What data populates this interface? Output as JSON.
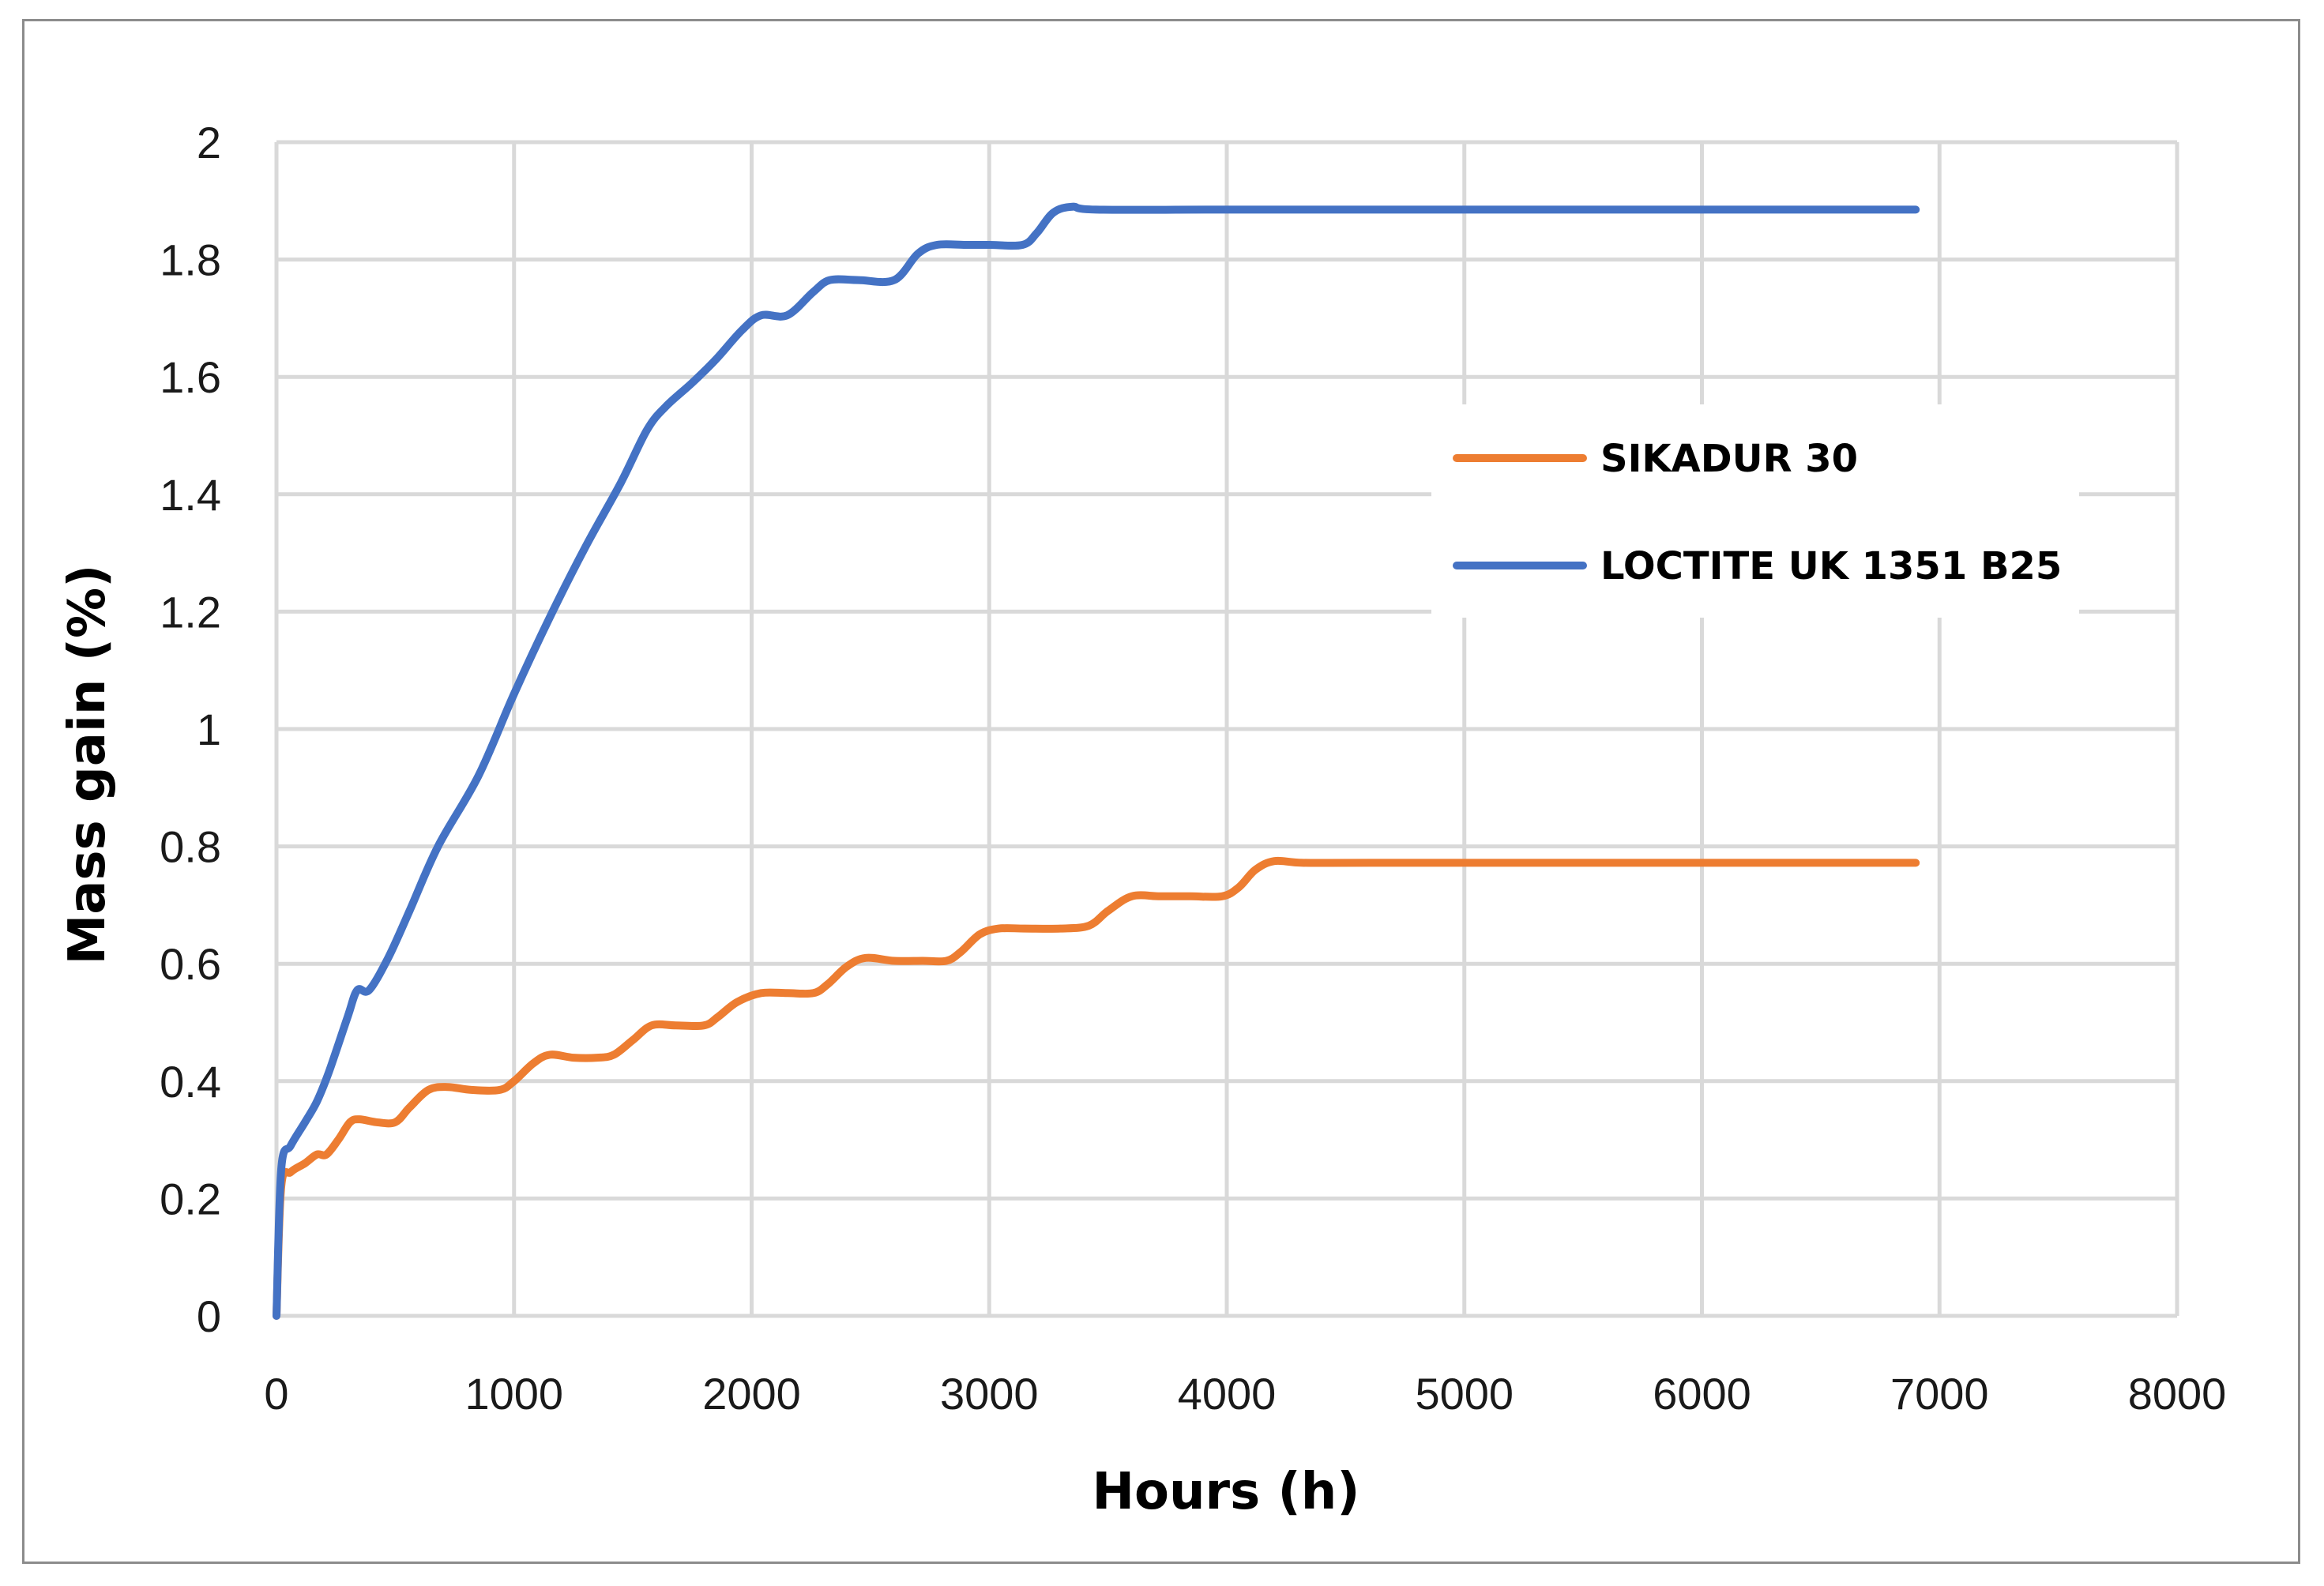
{
  "chart_data": {
    "type": "line",
    "title": "",
    "xlabel": "Hours (h)",
    "ylabel": "Mass gain (%)",
    "xlim": [
      0,
      8000
    ],
    "ylim": [
      0,
      2
    ],
    "x_ticks": [
      0,
      1000,
      2000,
      3000,
      4000,
      5000,
      6000,
      7000,
      8000
    ],
    "y_ticks": [
      0,
      0.2,
      0.4,
      0.6,
      0.8,
      1,
      1.2,
      1.4,
      1.6,
      1.8,
      2
    ],
    "x_tick_labels": [
      "0",
      "1000",
      "2000",
      "3000",
      "4000",
      "5000",
      "6000",
      "7000",
      "8000"
    ],
    "y_tick_labels": [
      "0",
      "0.2",
      "0.4",
      "0.6",
      "0.8",
      "1",
      "1.2",
      "1.4",
      "1.6",
      "1.8",
      "2"
    ],
    "grid": true,
    "legend_position": "right",
    "series": [
      {
        "name": "SIKADUR 30",
        "color": "#ed7d31",
        "points": [
          [
            0,
            0
          ],
          [
            20,
            0.22
          ],
          [
            60,
            0.245
          ],
          [
            120,
            0.26
          ],
          [
            170,
            0.275
          ],
          [
            210,
            0.275
          ],
          [
            260,
            0.3
          ],
          [
            310,
            0.33
          ],
          [
            350,
            0.335
          ],
          [
            420,
            0.33
          ],
          [
            500,
            0.33
          ],
          [
            560,
            0.355
          ],
          [
            640,
            0.385
          ],
          [
            720,
            0.39
          ],
          [
            820,
            0.385
          ],
          [
            940,
            0.385
          ],
          [
            1000,
            0.4
          ],
          [
            1080,
            0.43
          ],
          [
            1150,
            0.445
          ],
          [
            1250,
            0.44
          ],
          [
            1350,
            0.44
          ],
          [
            1420,
            0.445
          ],
          [
            1500,
            0.47
          ],
          [
            1580,
            0.495
          ],
          [
            1680,
            0.495
          ],
          [
            1800,
            0.495
          ],
          [
            1860,
            0.51
          ],
          [
            1940,
            0.535
          ],
          [
            2040,
            0.55
          ],
          [
            2150,
            0.55
          ],
          [
            2260,
            0.55
          ],
          [
            2320,
            0.565
          ],
          [
            2400,
            0.595
          ],
          [
            2480,
            0.61
          ],
          [
            2600,
            0.605
          ],
          [
            2720,
            0.605
          ],
          [
            2820,
            0.605
          ],
          [
            2880,
            0.62
          ],
          [
            2960,
            0.65
          ],
          [
            3040,
            0.66
          ],
          [
            3150,
            0.66
          ],
          [
            3300,
            0.66
          ],
          [
            3420,
            0.665
          ],
          [
            3500,
            0.69
          ],
          [
            3600,
            0.715
          ],
          [
            3720,
            0.715
          ],
          [
            3850,
            0.715
          ],
          [
            3980,
            0.715
          ],
          [
            4050,
            0.73
          ],
          [
            4120,
            0.76
          ],
          [
            4200,
            0.775
          ],
          [
            4320,
            0.772
          ],
          [
            4600,
            0.772
          ],
          [
            5500,
            0.772
          ],
          [
            6900,
            0.772
          ]
        ]
      },
      {
        "name": "LOCTITE UK 1351 B25",
        "color": "#4472c4",
        "points": [
          [
            0,
            0
          ],
          [
            20,
            0.25
          ],
          [
            60,
            0.29
          ],
          [
            120,
            0.33
          ],
          [
            170,
            0.365
          ],
          [
            220,
            0.415
          ],
          [
            300,
            0.51
          ],
          [
            340,
            0.555
          ],
          [
            390,
            0.555
          ],
          [
            470,
            0.61
          ],
          [
            560,
            0.69
          ],
          [
            680,
            0.8
          ],
          [
            850,
            0.92
          ],
          [
            1000,
            1.06
          ],
          [
            1150,
            1.19
          ],
          [
            1300,
            1.31
          ],
          [
            1450,
            1.42
          ],
          [
            1560,
            1.51
          ],
          [
            1640,
            1.55
          ],
          [
            1750,
            1.59
          ],
          [
            1850,
            1.63
          ],
          [
            1960,
            1.68
          ],
          [
            2040,
            1.705
          ],
          [
            2150,
            1.705
          ],
          [
            2260,
            1.745
          ],
          [
            2330,
            1.765
          ],
          [
            2450,
            1.765
          ],
          [
            2600,
            1.765
          ],
          [
            2700,
            1.81
          ],
          [
            2780,
            1.825
          ],
          [
            2900,
            1.825
          ],
          [
            3000,
            1.825
          ],
          [
            3140,
            1.825
          ],
          [
            3200,
            1.845
          ],
          [
            3270,
            1.88
          ],
          [
            3350,
            1.89
          ],
          [
            3450,
            1.885
          ],
          [
            4000,
            1.885
          ],
          [
            5000,
            1.885
          ],
          [
            6900,
            1.885
          ]
        ]
      }
    ]
  }
}
